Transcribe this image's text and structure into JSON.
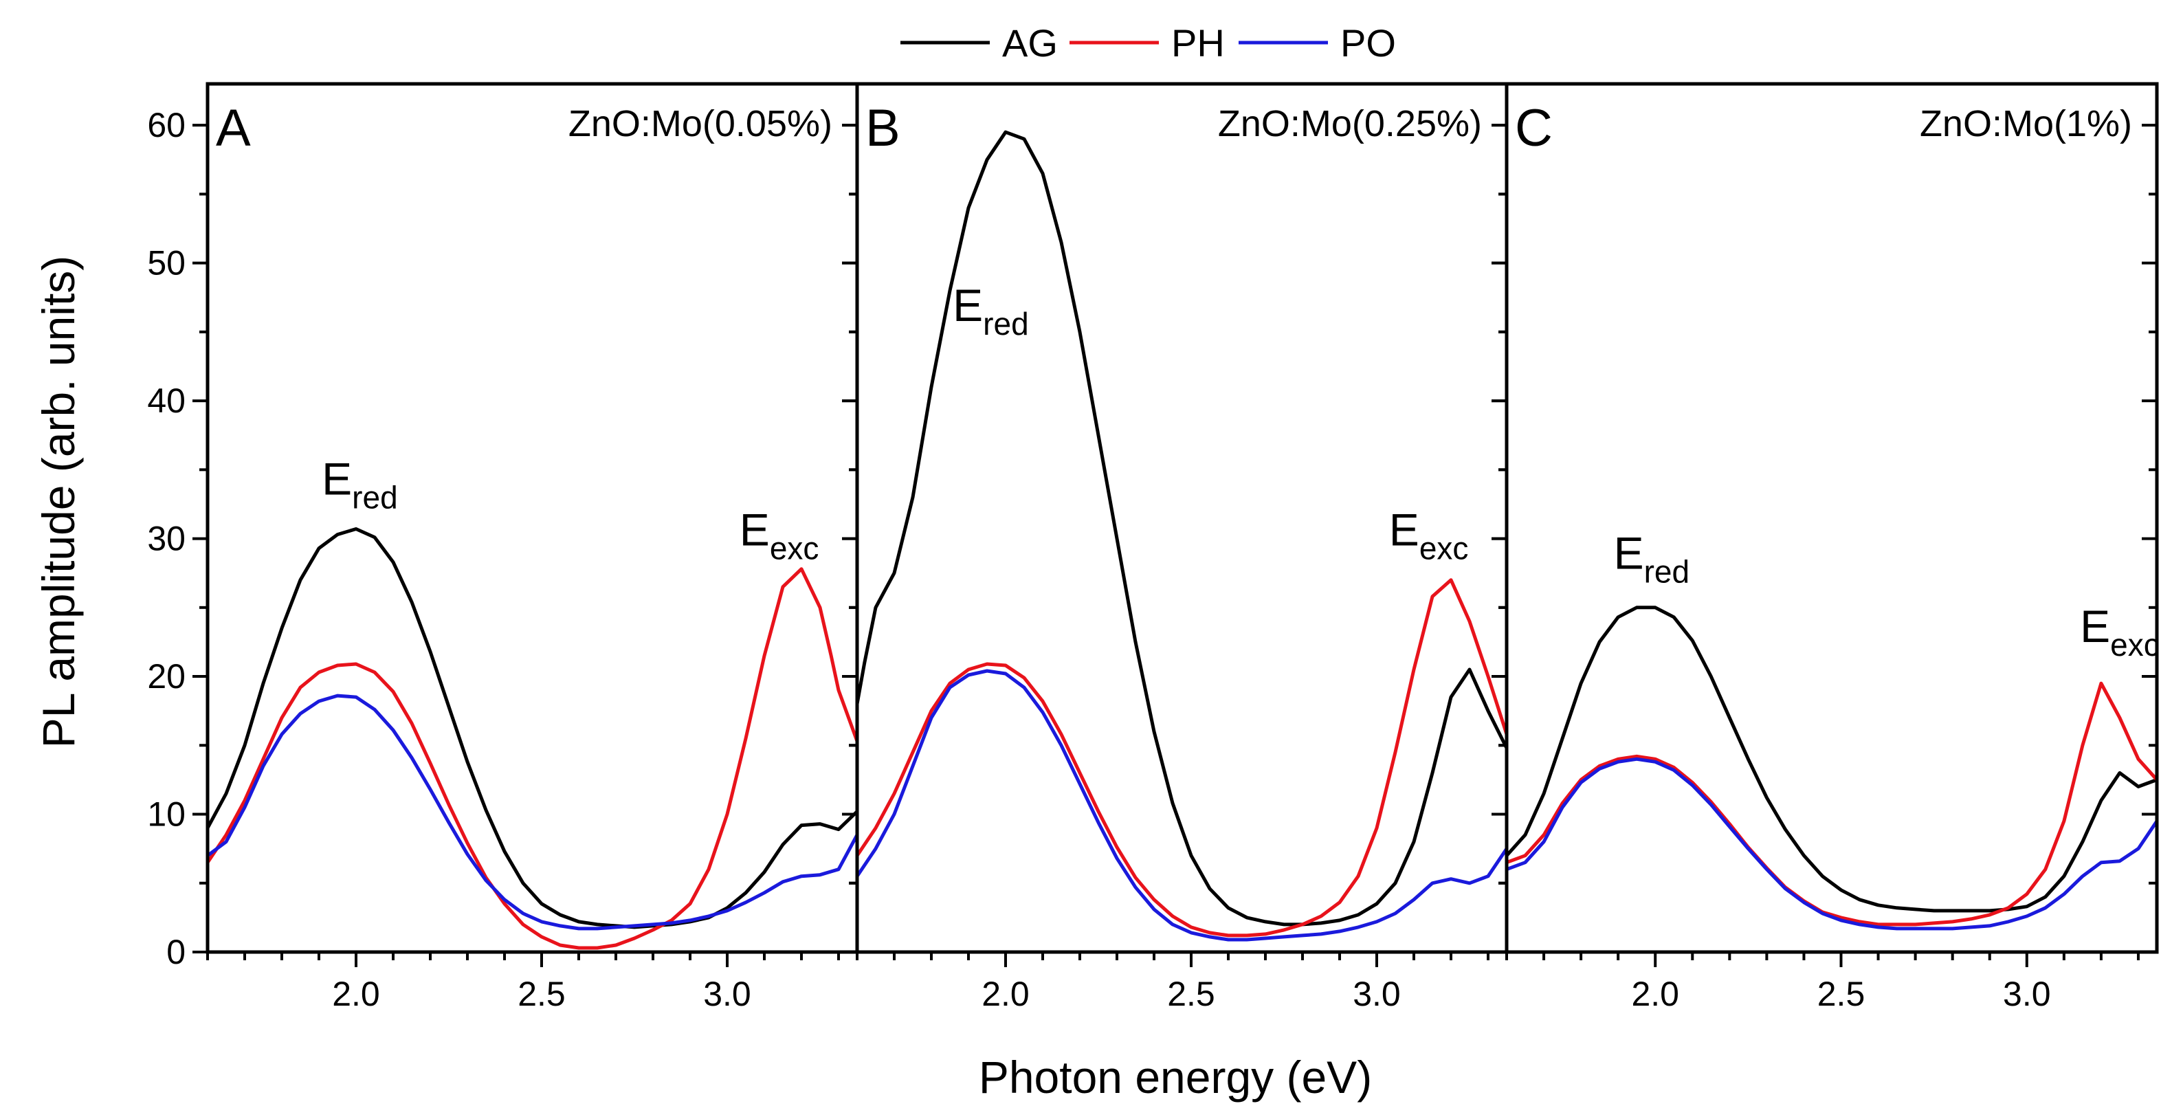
{
  "chart_data": [
    {
      "type": "line",
      "panel_label": "A",
      "title": "ZnO:Mo(0.05%)",
      "xlabel": "Photon energy (eV)",
      "ylabel": "PL amplitude (arb. units)",
      "xlim": [
        1.6,
        3.35
      ],
      "ylim": [
        0,
        63
      ],
      "xticks": [
        "2.0",
        "2.5",
        "3.0"
      ],
      "yticks": [
        "0",
        "10",
        "20",
        "30",
        "40",
        "50",
        "60"
      ],
      "annotations": [
        {
          "base": "E",
          "sub": "red",
          "x": 2.01,
          "y": 33.2
        },
        {
          "base": "E",
          "sub": "exc",
          "x": 3.14,
          "y": 29.5
        }
      ],
      "series": [
        {
          "name": "AG",
          "x": [
            1.6,
            1.65,
            1.7,
            1.75,
            1.8,
            1.85,
            1.9,
            1.95,
            2.0,
            2.05,
            2.1,
            2.15,
            2.2,
            2.25,
            2.3,
            2.35,
            2.4,
            2.45,
            2.5,
            2.55,
            2.6,
            2.65,
            2.7,
            2.75,
            2.8,
            2.85,
            2.9,
            2.95,
            3.0,
            3.05,
            3.1,
            3.15,
            3.2,
            3.25,
            3.3,
            3.35
          ],
          "values": [
            9.0,
            11.5,
            15.0,
            19.5,
            23.5,
            27.0,
            29.3,
            30.3,
            30.7,
            30.1,
            28.3,
            25.4,
            21.8,
            17.8,
            13.8,
            10.3,
            7.3,
            5.0,
            3.5,
            2.7,
            2.2,
            2.0,
            1.9,
            1.8,
            1.9,
            2.0,
            2.2,
            2.5,
            3.2,
            4.3,
            5.8,
            7.8,
            9.2,
            9.3,
            8.9,
            10.2
          ]
        },
        {
          "name": "PH",
          "x": [
            1.6,
            1.65,
            1.7,
            1.75,
            1.8,
            1.85,
            1.9,
            1.95,
            2.0,
            2.05,
            2.1,
            2.15,
            2.2,
            2.25,
            2.3,
            2.35,
            2.4,
            2.45,
            2.5,
            2.55,
            2.6,
            2.65,
            2.7,
            2.75,
            2.8,
            2.85,
            2.9,
            2.95,
            3.0,
            3.05,
            3.1,
            3.15,
            3.2,
            3.25,
            3.28,
            3.3,
            3.35
          ],
          "values": [
            6.5,
            8.5,
            11.0,
            14.0,
            17.0,
            19.2,
            20.3,
            20.8,
            20.9,
            20.3,
            18.9,
            16.6,
            13.7,
            10.7,
            7.9,
            5.4,
            3.5,
            2.0,
            1.1,
            0.5,
            0.3,
            0.3,
            0.5,
            1.0,
            1.6,
            2.3,
            3.5,
            6.0,
            10.0,
            15.5,
            21.5,
            26.5,
            27.8,
            25.0,
            21.5,
            19.0,
            15.3
          ]
        },
        {
          "name": "PO",
          "x": [
            1.6,
            1.65,
            1.7,
            1.75,
            1.8,
            1.85,
            1.9,
            1.95,
            2.0,
            2.05,
            2.1,
            2.15,
            2.2,
            2.25,
            2.3,
            2.35,
            2.4,
            2.45,
            2.5,
            2.55,
            2.6,
            2.65,
            2.7,
            2.75,
            2.8,
            2.85,
            2.9,
            2.95,
            3.0,
            3.05,
            3.1,
            3.15,
            3.2,
            3.25,
            3.3,
            3.35
          ],
          "values": [
            7.0,
            8.0,
            10.5,
            13.5,
            15.8,
            17.3,
            18.2,
            18.6,
            18.5,
            17.6,
            16.1,
            14.1,
            11.8,
            9.4,
            7.1,
            5.2,
            3.8,
            2.8,
            2.2,
            1.9,
            1.7,
            1.7,
            1.8,
            1.9,
            2.0,
            2.1,
            2.3,
            2.6,
            3.0,
            3.6,
            4.3,
            5.1,
            5.5,
            5.6,
            6.0,
            8.5
          ]
        }
      ]
    },
    {
      "type": "line",
      "panel_label": "B",
      "title": "ZnO:Mo(0.25%)",
      "xlabel": "Photon energy (eV)",
      "ylabel": "PL amplitude (arb. units)",
      "xlim": [
        1.6,
        3.35
      ],
      "ylim": [
        0,
        63
      ],
      "xticks": [
        "2.0",
        "2.5",
        "3.0"
      ],
      "yticks": [
        "0",
        "10",
        "20",
        "30",
        "40",
        "50",
        "60"
      ],
      "annotations": [
        {
          "base": "E",
          "sub": "red",
          "x": 1.96,
          "y": 45.8
        },
        {
          "base": "E",
          "sub": "exc",
          "x": 3.14,
          "y": 29.5
        }
      ],
      "series": [
        {
          "name": "AG",
          "x": [
            1.6,
            1.62,
            1.65,
            1.7,
            1.75,
            1.8,
            1.85,
            1.9,
            1.95,
            2.0,
            2.05,
            2.1,
            2.15,
            2.2,
            2.25,
            2.3,
            2.35,
            2.4,
            2.45,
            2.5,
            2.55,
            2.6,
            2.65,
            2.7,
            2.75,
            2.8,
            2.85,
            2.9,
            2.95,
            3.0,
            3.05,
            3.1,
            3.15,
            3.2,
            3.25,
            3.3,
            3.35
          ],
          "values": [
            18.0,
            21.0,
            25.0,
            27.5,
            33.0,
            41.0,
            48.0,
            54.0,
            57.5,
            59.5,
            59.0,
            56.5,
            51.5,
            45.0,
            37.5,
            30.0,
            22.5,
            16.0,
            10.8,
            7.0,
            4.6,
            3.2,
            2.5,
            2.2,
            2.0,
            2.0,
            2.1,
            2.3,
            2.7,
            3.5,
            5.0,
            8.0,
            13.0,
            18.5,
            20.5,
            17.5,
            14.8
          ]
        },
        {
          "name": "PH",
          "x": [
            1.6,
            1.65,
            1.7,
            1.75,
            1.8,
            1.85,
            1.9,
            1.95,
            2.0,
            2.05,
            2.1,
            2.15,
            2.2,
            2.25,
            2.3,
            2.35,
            2.4,
            2.45,
            2.5,
            2.55,
            2.6,
            2.65,
            2.7,
            2.75,
            2.8,
            2.85,
            2.9,
            2.95,
            3.0,
            3.05,
            3.1,
            3.15,
            3.2,
            3.25,
            3.3,
            3.35
          ],
          "values": [
            7.0,
            9.0,
            11.5,
            14.5,
            17.5,
            19.5,
            20.5,
            20.9,
            20.8,
            19.9,
            18.2,
            15.8,
            13.0,
            10.2,
            7.6,
            5.4,
            3.8,
            2.6,
            1.8,
            1.4,
            1.2,
            1.2,
            1.3,
            1.6,
            2.0,
            2.6,
            3.6,
            5.5,
            9.0,
            14.5,
            20.5,
            25.8,
            27.0,
            24.0,
            20.0,
            15.8
          ]
        },
        {
          "name": "PO",
          "x": [
            1.6,
            1.65,
            1.7,
            1.75,
            1.8,
            1.85,
            1.9,
            1.95,
            2.0,
            2.05,
            2.1,
            2.15,
            2.2,
            2.25,
            2.3,
            2.35,
            2.4,
            2.45,
            2.5,
            2.55,
            2.6,
            2.65,
            2.7,
            2.75,
            2.8,
            2.85,
            2.9,
            2.95,
            3.0,
            3.05,
            3.1,
            3.15,
            3.2,
            3.25,
            3.3,
            3.35
          ],
          "values": [
            5.5,
            7.5,
            10.0,
            13.5,
            17.0,
            19.2,
            20.1,
            20.4,
            20.2,
            19.2,
            17.4,
            15.0,
            12.2,
            9.4,
            6.8,
            4.7,
            3.1,
            2.0,
            1.4,
            1.1,
            0.9,
            0.9,
            1.0,
            1.1,
            1.2,
            1.3,
            1.5,
            1.8,
            2.2,
            2.8,
            3.8,
            5.0,
            5.3,
            5.0,
            5.5,
            7.5
          ]
        }
      ]
    },
    {
      "type": "line",
      "panel_label": "C",
      "title": "ZnO:Mo(1%)",
      "xlabel": "Photon energy (eV)",
      "ylabel": "PL amplitude (arb. units)",
      "xlim": [
        1.6,
        3.35
      ],
      "ylim": [
        0,
        63
      ],
      "xticks": [
        "2.0",
        "2.5",
        "3.0"
      ],
      "yticks": [
        "0",
        "10",
        "20",
        "30",
        "40",
        "50",
        "60"
      ],
      "annotations": [
        {
          "base": "E",
          "sub": "red",
          "x": 1.99,
          "y": 27.8
        },
        {
          "base": "E",
          "sub": "exc",
          "x": 3.25,
          "y": 22.5
        }
      ],
      "series": [
        {
          "name": "AG",
          "x": [
            1.6,
            1.65,
            1.7,
            1.75,
            1.8,
            1.85,
            1.9,
            1.95,
            2.0,
            2.05,
            2.1,
            2.15,
            2.2,
            2.25,
            2.3,
            2.35,
            2.4,
            2.45,
            2.5,
            2.55,
            2.6,
            2.65,
            2.7,
            2.75,
            2.8,
            2.85,
            2.9,
            2.95,
            3.0,
            3.05,
            3.1,
            3.15,
            3.2,
            3.25,
            3.3,
            3.35
          ],
          "values": [
            7.0,
            8.5,
            11.5,
            15.5,
            19.5,
            22.5,
            24.3,
            25.0,
            25.0,
            24.3,
            22.6,
            20.0,
            17.0,
            14.0,
            11.2,
            8.9,
            7.0,
            5.5,
            4.5,
            3.8,
            3.4,
            3.2,
            3.1,
            3.0,
            3.0,
            3.0,
            3.0,
            3.1,
            3.3,
            4.0,
            5.5,
            8.0,
            11.0,
            13.0,
            12.0,
            12.5
          ]
        },
        {
          "name": "PH",
          "x": [
            1.6,
            1.65,
            1.7,
            1.75,
            1.8,
            1.85,
            1.9,
            1.95,
            2.0,
            2.05,
            2.1,
            2.15,
            2.2,
            2.25,
            2.3,
            2.35,
            2.4,
            2.45,
            2.5,
            2.55,
            2.6,
            2.65,
            2.7,
            2.75,
            2.8,
            2.85,
            2.9,
            2.95,
            3.0,
            3.05,
            3.1,
            3.15,
            3.2,
            3.25,
            3.3,
            3.35
          ],
          "values": [
            6.5,
            7.0,
            8.5,
            10.8,
            12.5,
            13.5,
            14.0,
            14.2,
            14.0,
            13.4,
            12.3,
            10.9,
            9.3,
            7.6,
            6.1,
            4.7,
            3.7,
            2.9,
            2.5,
            2.2,
            2.0,
            2.0,
            2.0,
            2.1,
            2.2,
            2.4,
            2.7,
            3.2,
            4.2,
            6.0,
            9.5,
            15.0,
            19.5,
            17.0,
            14.0,
            12.5
          ]
        },
        {
          "name": "PO",
          "x": [
            1.6,
            1.65,
            1.7,
            1.75,
            1.8,
            1.85,
            1.9,
            1.95,
            2.0,
            2.05,
            2.1,
            2.15,
            2.2,
            2.25,
            2.3,
            2.35,
            2.4,
            2.45,
            2.5,
            2.55,
            2.6,
            2.65,
            2.7,
            2.75,
            2.8,
            2.85,
            2.9,
            2.95,
            3.0,
            3.05,
            3.1,
            3.15,
            3.2,
            3.25,
            3.3,
            3.35
          ],
          "values": [
            6.0,
            6.5,
            8.0,
            10.5,
            12.3,
            13.3,
            13.8,
            14.0,
            13.8,
            13.2,
            12.1,
            10.7,
            9.1,
            7.5,
            6.0,
            4.6,
            3.6,
            2.8,
            2.3,
            2.0,
            1.8,
            1.7,
            1.7,
            1.7,
            1.7,
            1.8,
            1.9,
            2.2,
            2.6,
            3.2,
            4.2,
            5.5,
            6.5,
            6.6,
            7.5,
            9.5
          ]
        }
      ]
    }
  ],
  "legend": [
    {
      "name": "AG",
      "color": "#000000"
    },
    {
      "name": "PH",
      "color": "#e8131b"
    },
    {
      "name": "PO",
      "color": "#1a1adc"
    }
  ],
  "axis_titles": {
    "x": "Photon energy (eV)",
    "y": "PL amplitude (arb. units)"
  }
}
